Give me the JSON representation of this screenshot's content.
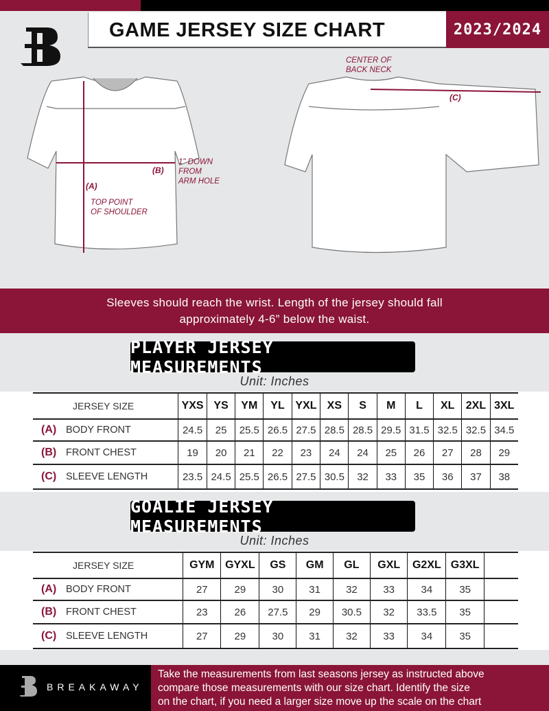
{
  "colors": {
    "accent": "#8a1538",
    "background": "#e6e7e8",
    "dark": "#000000"
  },
  "header": {
    "title": "GAME JERSEY SIZE CHART",
    "season": "2023/2024",
    "logo_icon": "breakaway-b-logo"
  },
  "diagram": {
    "label_a": "(A)",
    "label_b": "(B)",
    "label_c": "(C)",
    "note_shoulder": [
      "TOP POINT",
      "OF SHOULDER"
    ],
    "note_armhole": [
      "1\" DOWN",
      "FROM",
      "ARM HOLE"
    ],
    "note_neck": [
      "CENTER OF",
      "BACK NECK"
    ]
  },
  "instructions": [
    "Sleeves should reach the wrist. Length of the jersey should fall",
    "approximately 4-6” below the waist."
  ],
  "player": {
    "title": "PLAYER JERSEY MEASUREMENTS",
    "unit": "Unit: Inches",
    "size_header": "JERSEY SIZE",
    "sizes": [
      "YXS",
      "YS",
      "YM",
      "YL",
      "YXL",
      "XS",
      "S",
      "M",
      "L",
      "XL",
      "2XL",
      "3XL"
    ],
    "rows": [
      {
        "code": "(A)",
        "name": "BODY FRONT",
        "values": [
          "24.5",
          "25",
          "25.5",
          "26.5",
          "27.5",
          "28.5",
          "28.5",
          "29.5",
          "31.5",
          "32.5",
          "32.5",
          "34.5"
        ]
      },
      {
        "code": "(B)",
        "name": "FRONT CHEST",
        "values": [
          "19",
          "20",
          "21",
          "22",
          "23",
          "24",
          "24",
          "25",
          "26",
          "27",
          "28",
          "29"
        ]
      },
      {
        "code": "(C)",
        "name": "SLEEVE LENGTH",
        "values": [
          "23.5",
          "24.5",
          "25.5",
          "26.5",
          "27.5",
          "30.5",
          "32",
          "33",
          "35",
          "36",
          "37",
          "38"
        ]
      }
    ]
  },
  "goalie": {
    "title": "GOALIE JERSEY MEASUREMENTS",
    "unit": "Unit: Inches",
    "size_header": "JERSEY SIZE",
    "sizes": [
      "GYM",
      "GYXL",
      "GS",
      "GM",
      "GL",
      "GXL",
      "G2XL",
      "G3XL",
      ""
    ],
    "rows": [
      {
        "code": "(A)",
        "name": "BODY FRONT",
        "values": [
          "27",
          "29",
          "30",
          "31",
          "32",
          "33",
          "34",
          "35",
          ""
        ]
      },
      {
        "code": "(B)",
        "name": "FRONT CHEST",
        "values": [
          "23",
          "26",
          "27.5",
          "29",
          "30.5",
          "32",
          "33.5",
          "35",
          ""
        ]
      },
      {
        "code": "(C)",
        "name": "SLEEVE LENGTH",
        "values": [
          "27",
          "29",
          "30",
          "31",
          "32",
          "33",
          "34",
          "35",
          ""
        ]
      }
    ]
  },
  "footer": {
    "brand": "BREAKAWAY",
    "text": [
      "Take the measurements from last seasons jersey as instructed above",
      "compare those measurements  with our size chart. Identify the size",
      "on the chart, if you need a larger size move up the scale on the chart"
    ]
  }
}
